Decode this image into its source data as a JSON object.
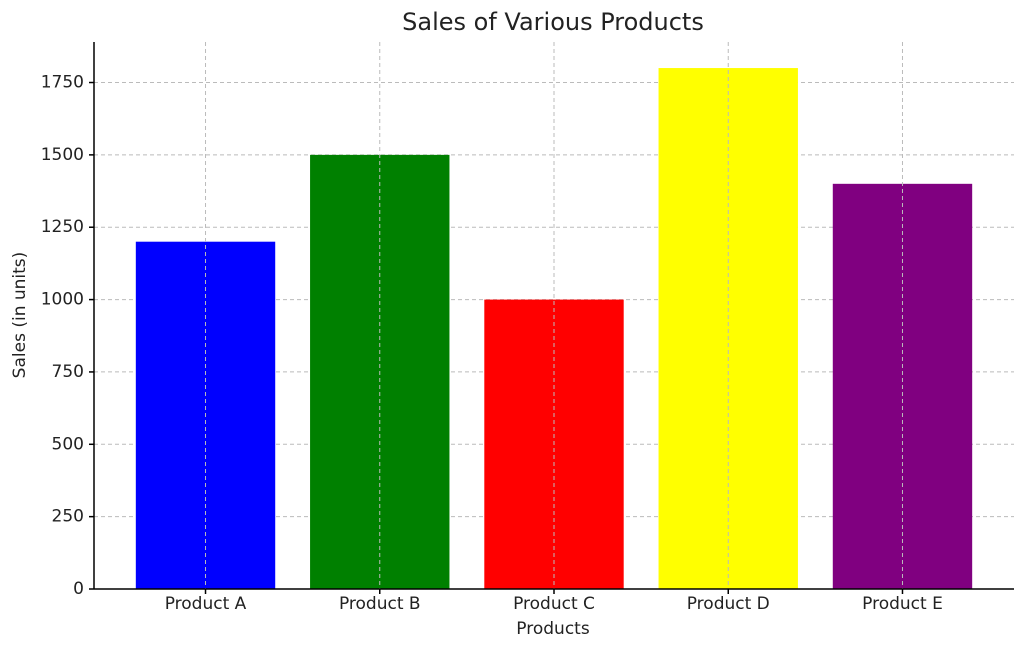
{
  "chart_data": {
    "type": "bar",
    "title": "Sales of Various Products",
    "x_label": "Products",
    "y_label": "Sales (in units)",
    "categories": [
      "Product A",
      "Product B",
      "Product C",
      "Product D",
      "Product E"
    ],
    "values": [
      1200,
      1500,
      1000,
      1800,
      1400
    ],
    "colors": [
      "#0000ff",
      "#008000",
      "#ff0000",
      "#ffff00",
      "#800080"
    ],
    "ylim": [
      0,
      1890
    ],
    "yticks": [
      0,
      250,
      500,
      750,
      1000,
      1250,
      1500,
      1750
    ],
    "grid": true
  }
}
